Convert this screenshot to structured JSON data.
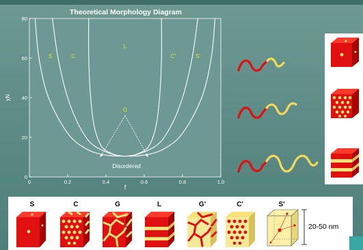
{
  "title": "Theoretical Morphology Diagram",
  "chart_data": {
    "type": "line",
    "title": "Theoretical Morphology Diagram",
    "xlabel": "f",
    "ylabel": "χN",
    "xlim": [
      0,
      1.0
    ],
    "ylim": [
      0,
      80
    ],
    "xticks": [
      "0",
      "0.2",
      "0.4",
      "0.6",
      "0.8",
      "1.0"
    ],
    "yticks": [
      "0",
      "20",
      "40",
      "60",
      "80"
    ],
    "grid": false,
    "phase_labels": [
      {
        "text": "S",
        "f": 0.11,
        "chiN": 60
      },
      {
        "text": "C",
        "f": 0.23,
        "chiN": 60
      },
      {
        "text": "L",
        "f": 0.5,
        "chiN": 65
      },
      {
        "text": "C'",
        "f": 0.75,
        "chiN": 60
      },
      {
        "text": "S'",
        "f": 0.88,
        "chiN": 60
      },
      {
        "text": "G",
        "f": 0.5,
        "chiN": 33
      }
    ],
    "region_label": "Disordered",
    "series": [
      {
        "values": [
          [
            0.03,
            80
          ],
          [
            0.05,
            60
          ],
          [
            0.1,
            40
          ],
          [
            0.2,
            22
          ],
          [
            0.3,
            14
          ],
          [
            0.4,
            11
          ],
          [
            0.5,
            10.5
          ],
          [
            0.6,
            11
          ],
          [
            0.7,
            14
          ],
          [
            0.8,
            22
          ],
          [
            0.9,
            40
          ],
          [
            0.95,
            60
          ],
          [
            0.97,
            80
          ]
        ]
      },
      {
        "values": [
          [
            0.12,
            80
          ],
          [
            0.15,
            60
          ],
          [
            0.2,
            40
          ],
          [
            0.27,
            24
          ],
          [
            0.35,
            15
          ],
          [
            0.5,
            10.5
          ],
          [
            0.65,
            15
          ],
          [
            0.73,
            24
          ],
          [
            0.8,
            40
          ],
          [
            0.85,
            60
          ],
          [
            0.88,
            80
          ]
        ]
      },
      {
        "values": [
          [
            0.31,
            80
          ],
          [
            0.31,
            60
          ],
          [
            0.32,
            40
          ],
          [
            0.34,
            25
          ],
          [
            0.38,
            15
          ],
          [
            0.45,
            11
          ]
        ]
      },
      {
        "values": [
          [
            0.69,
            80
          ],
          [
            0.69,
            60
          ],
          [
            0.68,
            40
          ],
          [
            0.66,
            25
          ],
          [
            0.62,
            15
          ],
          [
            0.55,
            11
          ]
        ]
      }
    ],
    "arrows": [
      {
        "from": [
          0.5,
          31
        ],
        "to": [
          0.37,
          10
        ]
      },
      {
        "from": [
          0.5,
          31
        ],
        "to": [
          0.62,
          10
        ]
      }
    ]
  },
  "chains": [
    {
      "red_segments": 2,
      "yellow_segments": 1
    },
    {
      "red_segments": 2,
      "yellow_segments": 2
    },
    {
      "red_segments": 2,
      "yellow_segments": 3
    }
  ],
  "morphologies": [
    {
      "label": "S"
    },
    {
      "label": "C"
    },
    {
      "label": "G"
    },
    {
      "label": "L"
    },
    {
      "label": "G'"
    },
    {
      "label": "C'"
    },
    {
      "label": "S'"
    }
  ],
  "size_label": "20-50 nm",
  "colors": {
    "red": "#e01010",
    "yellow": "#f7e27a",
    "plot_bg": "#c8c8c8",
    "label_yellow": "#d8f020",
    "curve": "#ffffff"
  }
}
